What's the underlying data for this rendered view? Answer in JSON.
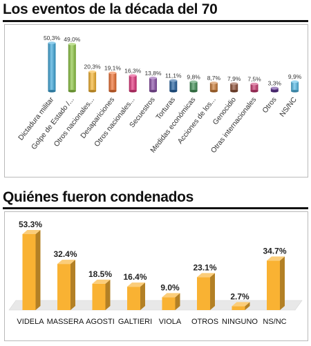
{
  "charts": [
    {
      "title": "Los eventos de la década del 70"
    },
    {
      "title": "Quiénes fueron condenados"
    }
  ],
  "chart_data": [
    {
      "type": "bar",
      "title": "Los eventos de la década del 70",
      "categories": [
        "Dictadura militar",
        "Golpe de Estado /...",
        "Otros nacionales...",
        "Desapariciones",
        "Otros nacionales...",
        "Secuestros",
        "Torturas",
        "Medidas económicas",
        "Acciones de los...",
        "Genocidio",
        "Otras internacionales",
        "Otros",
        "NS/NC"
      ],
      "values": [
        50.3,
        49.0,
        20.3,
        19.1,
        16.3,
        13.8,
        11.1,
        9.8,
        8.7,
        7.9,
        7.5,
        3.3,
        9.9
      ],
      "value_labels": [
        "50,3%",
        "49,0%",
        "20,3%",
        "19,1%",
        "16,3%",
        "13,8%",
        "11,1%",
        "9,8%",
        "8,7%",
        "7,9%",
        "7,5%",
        "3,3%",
        "9,9%"
      ],
      "colors": [
        "#3aa7dc",
        "#8cc63f",
        "#f7b32b",
        "#ef6c2b",
        "#e2307a",
        "#8a4ea8",
        "#1f5d9e",
        "#3d8f52",
        "#c9772f",
        "#8a4a2f",
        "#c7326c",
        "#5b2e91",
        "#4fb8e6"
      ],
      "ylim": [
        0,
        55
      ],
      "grid": false
    },
    {
      "type": "bar",
      "title": "Quiénes fueron condenados",
      "categories": [
        "VIDELA",
        "MASSERA",
        "AGOSTI",
        "GALTIERI",
        "VIOLA",
        "OTROS",
        "NINGUNO",
        "NS/NC"
      ],
      "values": [
        53.3,
        32.4,
        18.5,
        16.4,
        9.0,
        23.1,
        2.7,
        34.7
      ],
      "value_labels": [
        "53.3%",
        "32.4%",
        "18.5%",
        "16.4%",
        "9.0%",
        "23.1%",
        "2.7%",
        "34.7%"
      ],
      "colors": [
        "#f9b233"
      ],
      "ylim": [
        0,
        55
      ],
      "grid": false
    }
  ]
}
